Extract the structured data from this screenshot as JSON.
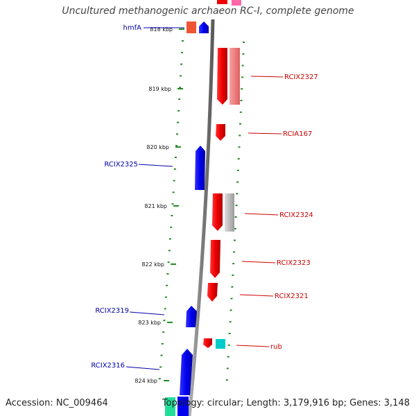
{
  "title": "Uncultured methanogenic archaeon RC-I, complete genome",
  "footer": {
    "accession": "Accession: NC_009464",
    "summary": "Topology: circular; Length: 3,179,916 bp; Genes: 3,148"
  },
  "ticks": [
    "818 kbp",
    "819 kbp",
    "820 kbp",
    "821 kbp",
    "822 kbp",
    "823 kbp",
    "824 kbp"
  ],
  "colors": {
    "forward_gene": "#0000ee",
    "reverse_gene": "#ee0000",
    "backbone": "#808080",
    "tick": "#228b22",
    "left_label": "#0000aa",
    "right_label": "#cc0000"
  },
  "genes": [
    {
      "label": "hmfA",
      "strand": "forward",
      "position_kbp": 817.97
    },
    {
      "label": "RCIX2325",
      "strand": "forward",
      "position_kbp": 820.3
    },
    {
      "label": "RCIX2319",
      "strand": "forward",
      "position_kbp": 822.9
    },
    {
      "label": "RCIX2316",
      "strand": "forward",
      "position_kbp": 823.9
    },
    {
      "label": "RCIX2327",
      "strand": "reverse",
      "position_kbp": 818.85
    },
    {
      "label": "RCIA167",
      "strand": "reverse",
      "position_kbp": 819.75
    },
    {
      "label": "RCIX2324",
      "strand": "reverse",
      "position_kbp": 821.15
    },
    {
      "label": "RCIX2323",
      "strand": "reverse",
      "position_kbp": 822.0
    },
    {
      "label": "RCIX2321",
      "strand": "reverse",
      "position_kbp": 822.5
    },
    {
      "label": "rub",
      "strand": "reverse",
      "position_kbp": 823.4
    }
  ]
}
